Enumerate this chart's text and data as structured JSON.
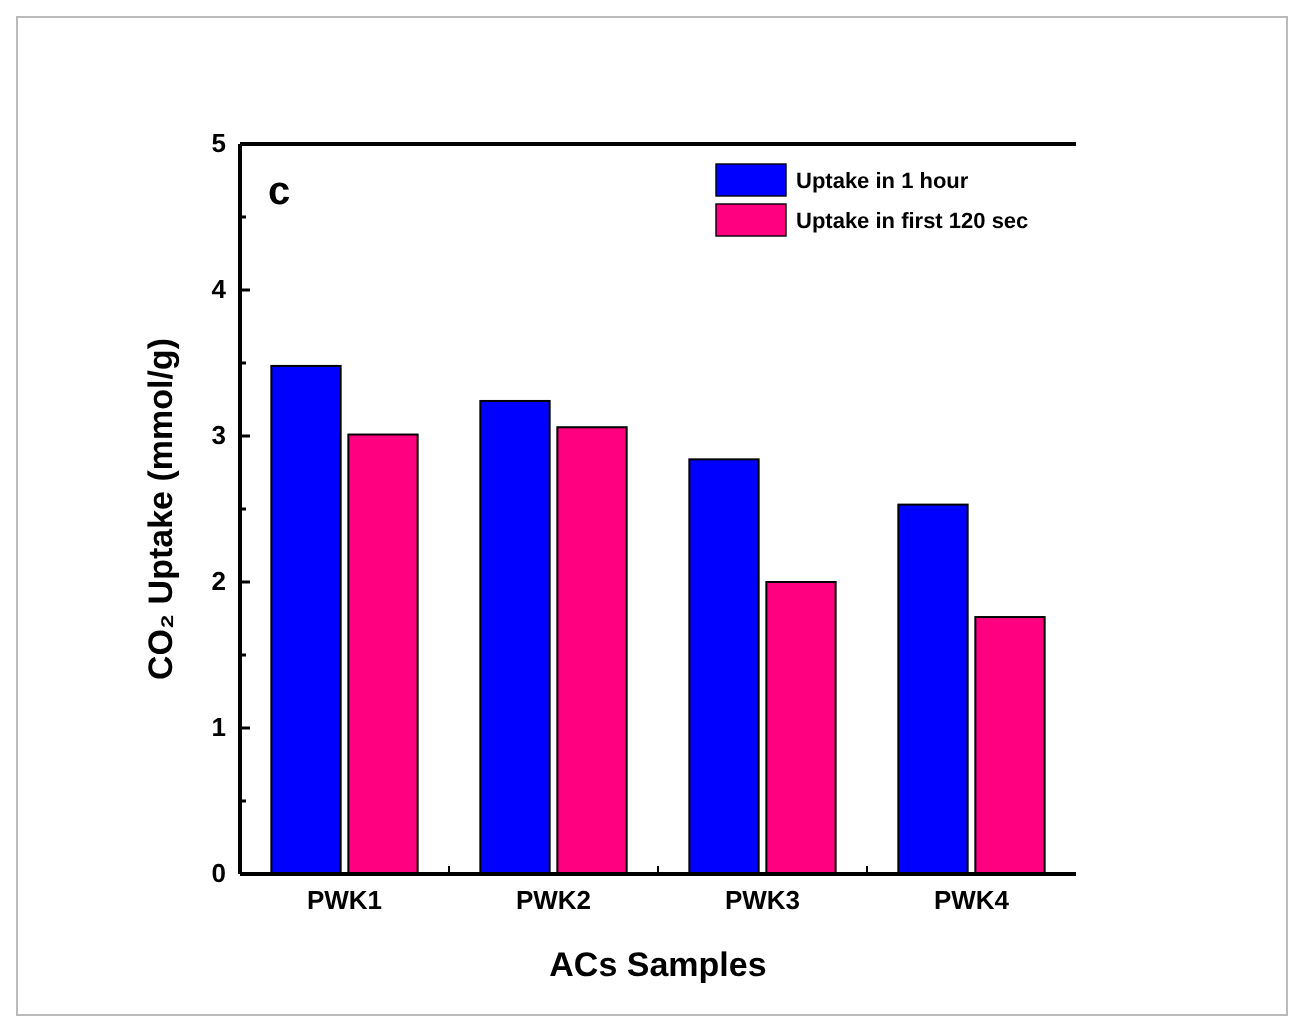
{
  "chart_data": {
    "type": "bar",
    "xlabel": "ACs Samples",
    "ylabel": "CO₂ Uptake (mmol/g)",
    "annotations": [
      "c"
    ],
    "categories": [
      "PWK1",
      "PWK2",
      "PWK3",
      "PWK4"
    ],
    "series": [
      {
        "name": "Uptake in 1 hour",
        "color": "#0000ff",
        "values": [
          3.48,
          3.24,
          2.84,
          2.53
        ]
      },
      {
        "name": "Uptake in first 120 sec",
        "color": "#ff0080",
        "values": [
          3.01,
          3.06,
          2.0,
          1.76
        ]
      }
    ],
    "ylim": [
      0,
      5
    ],
    "yticks": [
      0,
      {
        "value": 0.5,
        "label": null
      },
      1,
      {
        "value": 1.5,
        "label": null
      },
      2,
      {
        "value": 2.5,
        "label": null
      },
      3,
      {
        "value": 3.5,
        "label": null
      },
      4,
      {
        "value": 4.5,
        "label": null
      },
      5
    ],
    "grid": false,
    "legend": "top right"
  }
}
